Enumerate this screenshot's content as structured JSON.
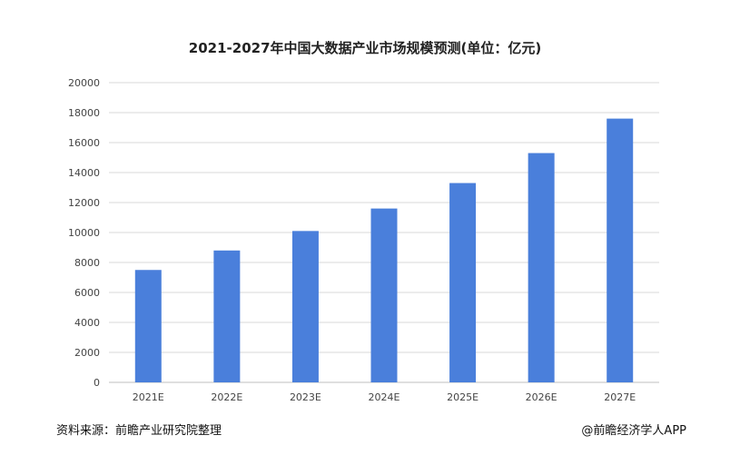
{
  "title": "2021-2027年中国大数据产业市场规模预测(单位：亿元)",
  "footer": {
    "source": "资料来源：前瞻产业研究院整理",
    "credit": "@前瞻经济学人APP"
  },
  "colors": {
    "bar": "#4a7fdb",
    "grid": "#d9d9d9",
    "axis_text": "#444444"
  },
  "chart_data": {
    "type": "bar",
    "title": "2021-2027年中国大数据产业市场规模预测(单位：亿元)",
    "categories": [
      "2021E",
      "2022E",
      "2023E",
      "2024E",
      "2025E",
      "2026E",
      "2027E"
    ],
    "values": [
      7500,
      8800,
      10100,
      11600,
      13300,
      15300,
      17600
    ],
    "xlabel": "",
    "ylabel": "",
    "ylim": [
      0,
      20000
    ],
    "yticks": [
      0,
      2000,
      4000,
      6000,
      8000,
      10000,
      12000,
      14000,
      16000,
      18000,
      20000
    ],
    "grid": true,
    "legend": "none"
  }
}
